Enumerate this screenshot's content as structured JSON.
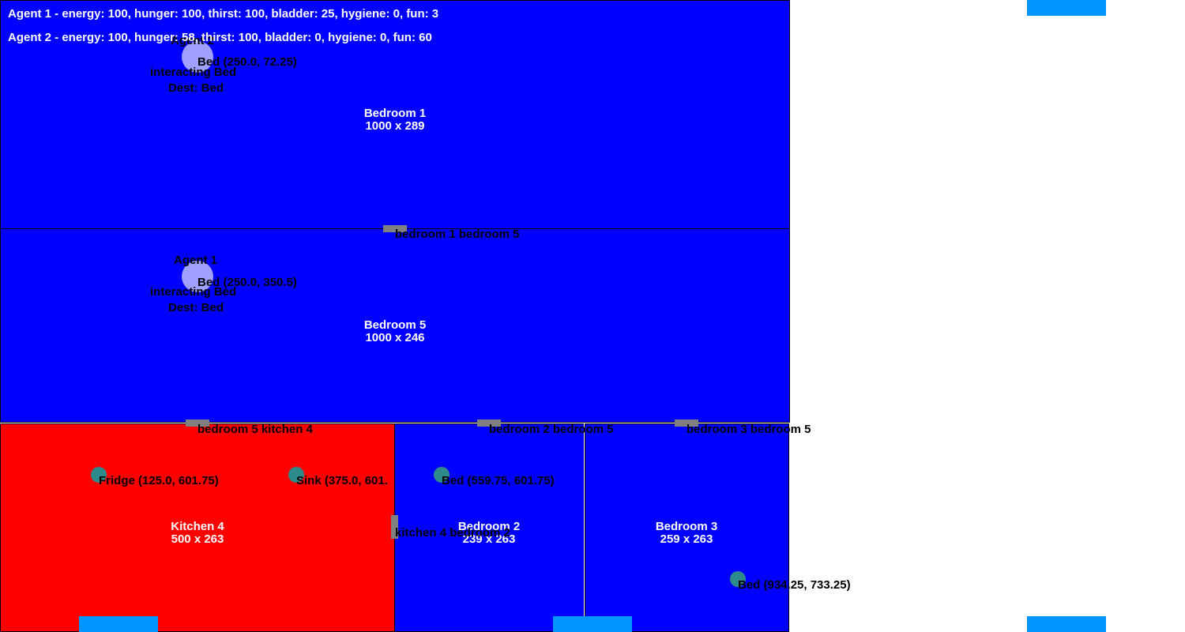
{
  "status": {
    "agent1": "Agent 1 - energy: 100, hunger: 100, thirst: 100, bladder: 25, hygiene: 0, fun: 3",
    "agent2": "Agent 2 - energy: 100, hunger: 58, thirst: 100, bladder: 0, hygiene: 0, fun: 60"
  },
  "rooms": {
    "bedroom1": {
      "name": "Bedroom 1",
      "size": "1000 x 289"
    },
    "bedroom5": {
      "name": "Bedroom 5",
      "size": "1000 x 246"
    },
    "kitchen4": {
      "name": "Kitchen 4",
      "size": "500 x 263"
    },
    "bedroom2": {
      "name": "Bedroom 2",
      "size": "239 x 263"
    },
    "bedroom3": {
      "name": "Bedroom 3",
      "size": "259 x 263"
    }
  },
  "doors": {
    "b1_b5": "bedroom 1 bedroom 5",
    "b5_k4": "bedroom 5 kitchen 4",
    "b2_b5": "bedroom 2 bedroom 5",
    "b3_b5": "bedroom 3 bedroom 5",
    "k4_b2": "kitchen 4 bedroom 2"
  },
  "objects": {
    "bed_b1": "Bed (250.0, 72.25)",
    "bed_b5": "Bed (250.0, 350.5)",
    "fridge": "Fridge (125.0, 601.75)",
    "sink": "Sink (375.0, 601.",
    "bed_b2": "Bed (559.75, 601.75)",
    "bed_b3": "Bed (934.25, 733.25)"
  },
  "agents": {
    "top": {
      "name": "Agent 2",
      "action": "interacting Bed",
      "dest": "Dest: Bed"
    },
    "bottom": {
      "name": "Agent 1",
      "action": "interacting Bed",
      "dest": "Dest: Bed"
    }
  },
  "colors": {
    "bedroom": "#0000ff",
    "kitchen": "#ff0000",
    "door": "#808080",
    "agent": "#a0a0ff",
    "object": "#2e8b8b",
    "spawn_stripe": "#0096ff"
  }
}
